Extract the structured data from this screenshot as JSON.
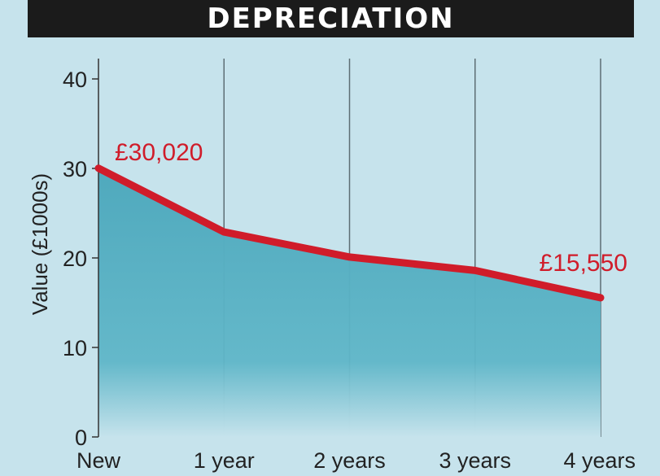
{
  "chart_data": {
    "type": "area",
    "title": "DEPRECIATION",
    "categories": [
      "New",
      "1 year",
      "2 years",
      "3 years",
      "4 years"
    ],
    "values": [
      30.02,
      22.9,
      20.1,
      18.6,
      15.55
    ],
    "ylabel": "Value (£1000s)",
    "xlabel": "",
    "ylim": [
      0,
      40
    ],
    "yticks": [
      0,
      10,
      20,
      30,
      40
    ],
    "grid": "vertical",
    "annotations": [
      {
        "label": "£30,020",
        "category": "New"
      },
      {
        "label": "£15,550",
        "category": "4 years"
      }
    ],
    "colors": {
      "background": "#c6e3ec",
      "line": "#d01c2a",
      "fill": "#5fb6c8",
      "grid": "#5d6e74",
      "title_bar": "#1b1b1b"
    }
  }
}
